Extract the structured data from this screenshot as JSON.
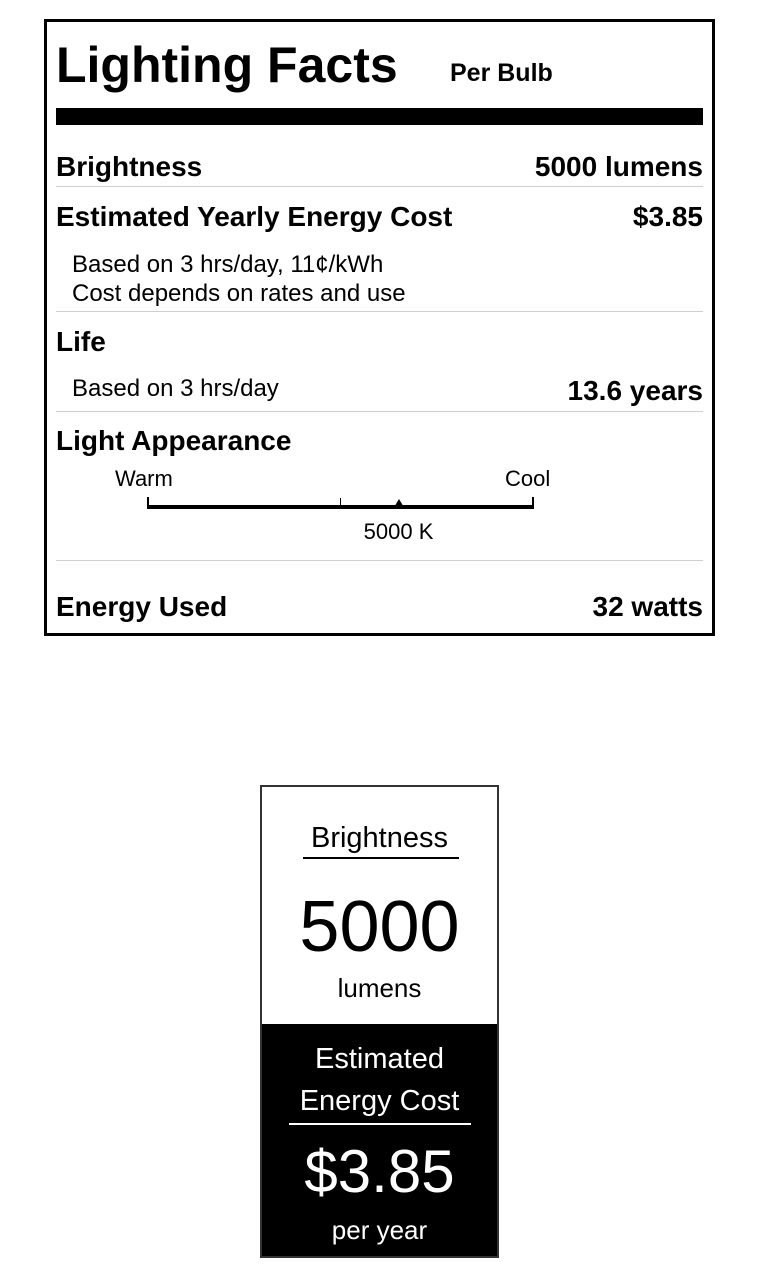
{
  "facts": {
    "title": "Lighting Facts",
    "subtitle": "Per Bulb",
    "brightness": {
      "label": "Brightness",
      "value": "5000 lumens"
    },
    "energy_cost": {
      "label": "Estimated Yearly Energy Cost",
      "value": "$3.85",
      "note_1": "Based on 3 hrs/day, 11¢/kWh",
      "note_2": "Cost depends on rates and use"
    },
    "life": {
      "label": "Life",
      "note": "Based on 3 hrs/day",
      "value": "13.6 years"
    },
    "light_appearance": {
      "label": "Light Appearance",
      "warm_label": "Warm",
      "cool_label": "Cool",
      "value": "5000 K",
      "marker_fraction": 0.65
    },
    "energy_used": {
      "label": "Energy Used",
      "value": "32 watts"
    }
  },
  "mini_label": {
    "brightness_label": "Brightness",
    "brightness_value": "5000",
    "brightness_unit": "lumens",
    "cost_label_1": "Estimated",
    "cost_label_2": "Energy Cost",
    "cost_value": "$3.85",
    "cost_unit": "per year"
  }
}
